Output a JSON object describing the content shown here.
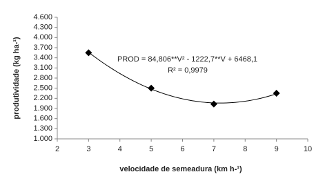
{
  "chart_data": {
    "type": "scatter",
    "x_label": "velocidade de semeadura (km h-¹)",
    "y_label": "produtividade (kg ha-¹)",
    "annotations": [
      "PROD = 84,806**V² - 1222,7**V + 6468,1",
      "R² = 0,9979"
    ],
    "x": [
      3,
      5,
      7,
      9
    ],
    "values": [
      3550,
      2500,
      2030,
      2350
    ],
    "color": "#000000",
    "trendline": {
      "type": "polynomial",
      "coefficients": [
        84.806,
        -1222.7,
        6468.1
      ],
      "color": "#000000"
    },
    "xlim": [
      2,
      10
    ],
    "xticks": [
      2,
      3,
      4,
      5,
      6,
      7,
      8,
      9,
      10
    ],
    "ylim": [
      1000,
      4600
    ],
    "yticks": [
      {
        "value": 1000,
        "label": "1.000"
      },
      {
        "value": 1300,
        "label": "1.300"
      },
      {
        "value": 1600,
        "label": "1.600"
      },
      {
        "value": 1900,
        "label": "1.900"
      },
      {
        "value": 2200,
        "label": "2.200"
      },
      {
        "value": 2500,
        "label": "2.500"
      },
      {
        "value": 2800,
        "label": "2.800"
      },
      {
        "value": 3100,
        "label": "3.100"
      },
      {
        "value": 3400,
        "label": "3.400"
      },
      {
        "value": 3700,
        "label": "3.700"
      },
      {
        "value": 4000,
        "label": "4.000"
      },
      {
        "value": 4300,
        "label": "4.300"
      },
      {
        "value": 4600,
        "label": "4.600"
      }
    ],
    "grid": false
  }
}
